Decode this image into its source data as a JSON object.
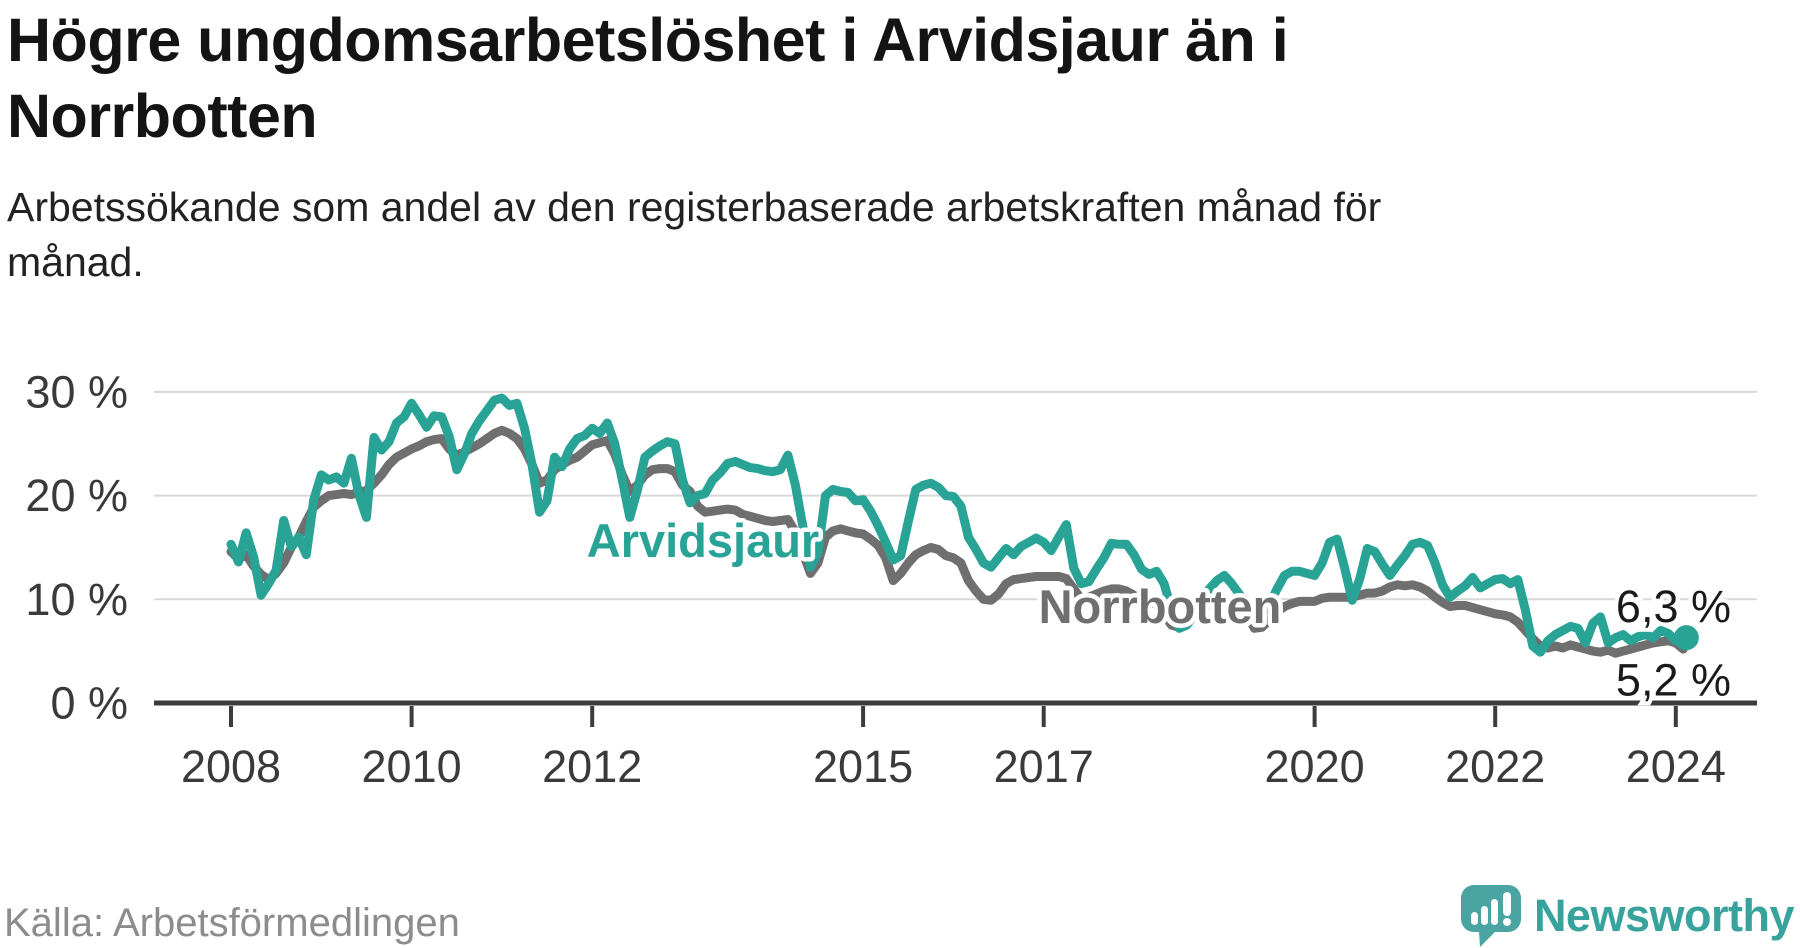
{
  "header": {
    "title_lines": [
      "Högre ungdomsarbetslöshet i Arvidsjaur än i",
      "Norrbotten"
    ],
    "subtitle_lines": [
      "Arbetssökande som andel av den registerbaserade arbetskraften månad för",
      "månad."
    ]
  },
  "footer": {
    "source": "Källa: Arbetsförmedlingen",
    "brand": "Newsworthy"
  },
  "colors": {
    "arvidsjaur": "#28a396",
    "norrbotten": "#6f6f6f",
    "axis": "#3c3c3c",
    "gridline": "#d8d8d8",
    "tick_label": "#3a3a3a",
    "end_label": "#1a1a1a",
    "logo": "#4aa4a1"
  },
  "chart_data": {
    "type": "line",
    "title": "Högre ungdomsarbetslöshet i Arvidsjaur än i Norrbotten",
    "xlabel": "",
    "ylabel": "",
    "grid": "horizontal",
    "legend_position": "inline-labels",
    "start_year": 2008,
    "points_per_year": 12,
    "ylim": [
      0,
      31
    ],
    "y_ticks": [
      {
        "value": 0,
        "label": "0 %"
      },
      {
        "value": 10,
        "label": "10 %"
      },
      {
        "value": 20,
        "label": "20 %"
      },
      {
        "value": 30,
        "label": "30 %"
      }
    ],
    "x_ticks": [
      {
        "value": 2008,
        "label": "2008"
      },
      {
        "value": 2010,
        "label": "2010"
      },
      {
        "value": 2012,
        "label": "2012"
      },
      {
        "value": 2015,
        "label": "2015"
      },
      {
        "value": 2017,
        "label": "2017"
      },
      {
        "value": 2020,
        "label": "2020"
      },
      {
        "value": 2022,
        "label": "2022"
      },
      {
        "value": 2024,
        "label": "2024"
      }
    ],
    "series": [
      {
        "name": "Arvidsjaur",
        "color": "#28a396",
        "end_label": "6,3 %",
        "end_dot": true,
        "values": [
          15.3,
          13.6,
          16.4,
          14.1,
          10.4,
          11.5,
          12.8,
          17.6,
          15.1,
          16.0,
          14.3,
          19.6,
          22.0,
          21.5,
          21.8,
          21.2,
          23.6,
          20.1,
          17.9,
          25.6,
          24.4,
          25.2,
          27.0,
          27.6,
          28.9,
          27.8,
          26.6,
          27.7,
          27.6,
          25.7,
          22.5,
          24.0,
          26.0,
          27.2,
          28.2,
          29.2,
          29.4,
          28.7,
          28.9,
          26.5,
          23.0,
          18.4,
          19.5,
          23.7,
          22.8,
          24.5,
          25.5,
          25.8,
          26.5,
          26.0,
          27.0,
          25.0,
          21.5,
          17.9,
          20.5,
          23.7,
          24.3,
          24.8,
          25.2,
          25.0,
          21.5,
          19.3,
          20.0,
          20.2,
          21.5,
          22.2,
          23.1,
          23.3,
          23.0,
          22.7,
          22.6,
          22.4,
          22.3,
          22.5,
          23.9,
          21.0,
          17.0,
          13.1,
          14.5,
          20.0,
          20.6,
          20.4,
          20.3,
          19.5,
          19.6,
          18.5,
          17.1,
          15.5,
          13.8,
          14.2,
          17.5,
          20.6,
          21.0,
          21.2,
          20.8,
          20.0,
          19.9,
          19.0,
          16.0,
          14.8,
          13.5,
          13.1,
          14.0,
          14.9,
          14.3,
          15.1,
          15.5,
          15.9,
          15.5,
          14.7,
          16.0,
          17.2,
          13.0,
          11.5,
          11.7,
          12.9,
          14.0,
          15.4,
          15.3,
          15.3,
          14.3,
          12.9,
          12.4,
          12.7,
          11.5,
          9.0,
          7.2,
          7.5,
          8.5,
          10.0,
          11.0,
          11.8,
          12.3,
          11.5,
          10.5,
          9.5,
          8.0,
          8.5,
          9.5,
          11.0,
          12.3,
          12.7,
          12.7,
          12.5,
          12.3,
          13.5,
          15.5,
          15.8,
          13.0,
          9.9,
          12.0,
          14.9,
          14.6,
          13.4,
          12.3,
          13.3,
          14.2,
          15.3,
          15.5,
          15.2,
          13.5,
          11.4,
          10.2,
          10.8,
          11.3,
          12.1,
          11.1,
          11.5,
          11.9,
          12.0,
          11.5,
          11.9,
          9.0,
          5.5,
          4.9,
          6.0,
          6.6,
          7.0,
          7.4,
          7.2,
          5.8,
          7.7,
          8.3,
          5.8,
          6.3,
          6.6,
          6.0,
          6.4,
          6.6,
          6.3,
          7.0,
          6.7,
          6.0,
          6.3
        ]
      },
      {
        "name": "Norrbotten",
        "color": "#6f6f6f",
        "end_label": "5,2 %",
        "end_dot": false,
        "values": [
          14.6,
          13.9,
          14.3,
          13.2,
          12.4,
          11.9,
          12.5,
          13.5,
          15.0,
          16.0,
          17.5,
          18.9,
          19.5,
          20.0,
          20.1,
          20.2,
          20.1,
          20.3,
          20.5,
          21.2,
          22.0,
          23.0,
          23.7,
          24.1,
          24.5,
          24.8,
          25.2,
          25.4,
          25.5,
          24.5,
          23.9,
          24.2,
          24.6,
          25.0,
          25.5,
          26.0,
          26.3,
          26.0,
          25.5,
          24.5,
          23.0,
          21.2,
          21.5,
          22.5,
          23.0,
          23.4,
          23.7,
          24.3,
          24.9,
          25.1,
          25.3,
          24.0,
          22.0,
          20.4,
          21.0,
          22.0,
          22.5,
          22.6,
          22.6,
          22.3,
          21.0,
          20.4,
          19.0,
          18.4,
          18.5,
          18.6,
          18.7,
          18.6,
          18.2,
          18.0,
          17.8,
          17.6,
          17.5,
          17.6,
          17.7,
          16.5,
          14.5,
          12.5,
          13.5,
          16.0,
          16.6,
          16.8,
          16.6,
          16.4,
          16.3,
          15.8,
          15.2,
          14.0,
          11.8,
          12.5,
          13.5,
          14.3,
          14.7,
          15.0,
          14.8,
          14.2,
          14.0,
          13.5,
          11.8,
          10.8,
          10.0,
          9.9,
          10.5,
          11.5,
          11.9,
          12.0,
          12.1,
          12.2,
          12.2,
          12.2,
          12.2,
          12.0,
          11.0,
          10.0,
          10.2,
          10.5,
          10.8,
          11.0,
          11.0,
          10.8,
          10.4,
          10.0,
          9.8,
          9.5,
          8.5,
          7.5,
          7.3,
          7.8,
          8.5,
          9.0,
          9.3,
          9.5,
          9.7,
          9.5,
          9.0,
          8.5,
          7.2,
          7.3,
          8.0,
          8.8,
          9.3,
          9.6,
          9.8,
          9.8,
          9.8,
          10.1,
          10.2,
          10.2,
          10.2,
          10.2,
          10.4,
          10.6,
          10.6,
          10.8,
          11.2,
          11.4,
          11.3,
          11.4,
          11.2,
          10.8,
          10.2,
          9.7,
          9.3,
          9.4,
          9.4,
          9.2,
          9.0,
          8.8,
          8.6,
          8.5,
          8.3,
          7.8,
          7.0,
          6.2,
          5.5,
          5.3,
          5.5,
          5.3,
          5.6,
          5.4,
          5.2,
          5.0,
          4.9,
          5.1,
          4.8,
          5.0,
          5.2,
          5.4,
          5.6,
          5.8,
          5.9,
          6.0,
          5.8,
          5.2
        ]
      }
    ]
  }
}
